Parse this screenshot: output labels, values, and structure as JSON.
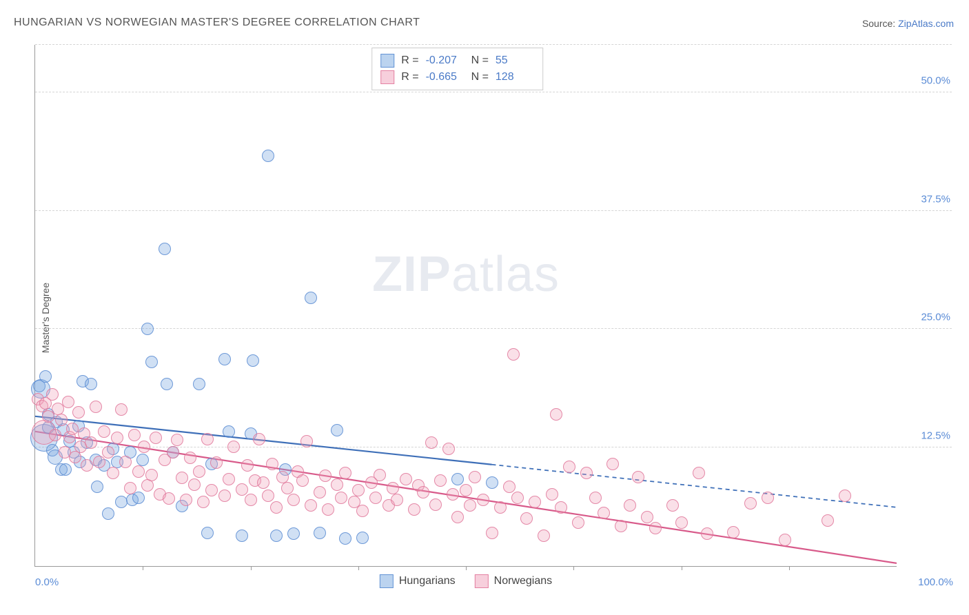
{
  "title": "HUNGARIAN VS NORWEGIAN MASTER'S DEGREE CORRELATION CHART",
  "source_label": "Source: ",
  "source_name": "ZipAtlas.com",
  "ylabel": "Master's Degree",
  "watermark_bold": "ZIP",
  "watermark_rest": "atlas",
  "chart": {
    "type": "scatter",
    "xlim": [
      0,
      100
    ],
    "ylim": [
      0,
      55
    ],
    "y_gridlines": [
      12.5,
      25.0,
      37.5,
      50.0
    ],
    "y_grid_top_extra": 55,
    "ytick_labels": [
      "12.5%",
      "25.0%",
      "37.5%",
      "50.0%"
    ],
    "xtick_positions": [
      12.5,
      25,
      37.5,
      50,
      62.5,
      75,
      87.5
    ],
    "xaxis_left_label": "0.0%",
    "xaxis_right_label": "100.0%",
    "background_color": "#ffffff",
    "grid_color": "#d5d5d5",
    "axis_color": "#999999",
    "point_radius": 9,
    "series": [
      {
        "name": "Hungarians",
        "fill": "rgba(120,167,224,0.35)",
        "stroke": "rgba(90,140,210,0.85)",
        "R": "-0.207",
        "N": "55",
        "trend": {
          "y_at_x0": 15.8,
          "y_at_x100": 6.2,
          "solid_until_x": 53,
          "color": "#3e6fb8",
          "width": 2.2
        },
        "points": [
          {
            "x": 0.5,
            "y": 19,
            "r": 9
          },
          {
            "x": 0.6,
            "y": 18.7,
            "r": 14
          },
          {
            "x": 1,
            "y": 13.5,
            "r": 20
          },
          {
            "x": 1.2,
            "y": 20,
            "r": 9
          },
          {
            "x": 1.5,
            "y": 16,
            "r": 9
          },
          {
            "x": 1.5,
            "y": 14.6,
            "r": 9
          },
          {
            "x": 2,
            "y": 12.2,
            "r": 9
          },
          {
            "x": 2.3,
            "y": 11.5,
            "r": 11
          },
          {
            "x": 2.5,
            "y": 15.2,
            "r": 9
          },
          {
            "x": 3,
            "y": 10.2,
            "r": 9
          },
          {
            "x": 3.3,
            "y": 14.4,
            "r": 9
          },
          {
            "x": 3.5,
            "y": 10.2,
            "r": 9
          },
          {
            "x": 4,
            "y": 13.2,
            "r": 9
          },
          {
            "x": 4.5,
            "y": 12,
            "r": 9
          },
          {
            "x": 5,
            "y": 14.8,
            "r": 9
          },
          {
            "x": 5.2,
            "y": 11,
            "r": 9
          },
          {
            "x": 5.5,
            "y": 19.5,
            "r": 9
          },
          {
            "x": 6,
            "y": 13,
            "r": 9
          },
          {
            "x": 6.5,
            "y": 19.2,
            "r": 9
          },
          {
            "x": 7,
            "y": 11.2,
            "r": 9
          },
          {
            "x": 7.2,
            "y": 8.4,
            "r": 9
          },
          {
            "x": 8,
            "y": 10.6,
            "r": 9
          },
          {
            "x": 8.5,
            "y": 5.5,
            "r": 9
          },
          {
            "x": 9,
            "y": 12.4,
            "r": 9
          },
          {
            "x": 9.5,
            "y": 11,
            "r": 9
          },
          {
            "x": 10,
            "y": 6.8,
            "r": 9
          },
          {
            "x": 11,
            "y": 12,
            "r": 9
          },
          {
            "x": 11.3,
            "y": 7,
            "r": 9
          },
          {
            "x": 12,
            "y": 7.2,
            "r": 9
          },
          {
            "x": 12.5,
            "y": 11.2,
            "r": 9
          },
          {
            "x": 13,
            "y": 25,
            "r": 9
          },
          {
            "x": 13.5,
            "y": 21.5,
            "r": 9
          },
          {
            "x": 15,
            "y": 33.5,
            "r": 9
          },
          {
            "x": 15.3,
            "y": 19.2,
            "r": 9
          },
          {
            "x": 16,
            "y": 12,
            "r": 9
          },
          {
            "x": 17,
            "y": 6.3,
            "r": 9
          },
          {
            "x": 19,
            "y": 19.2,
            "r": 9
          },
          {
            "x": 20,
            "y": 3.5,
            "r": 9
          },
          {
            "x": 20.5,
            "y": 10.8,
            "r": 9
          },
          {
            "x": 22,
            "y": 21.8,
            "r": 9
          },
          {
            "x": 22.5,
            "y": 14.2,
            "r": 9
          },
          {
            "x": 24,
            "y": 3.2,
            "r": 9
          },
          {
            "x": 25,
            "y": 14,
            "r": 9
          },
          {
            "x": 25.3,
            "y": 21.7,
            "r": 9
          },
          {
            "x": 27,
            "y": 43.3,
            "r": 9
          },
          {
            "x": 28,
            "y": 3.2,
            "r": 9
          },
          {
            "x": 29,
            "y": 10.2,
            "r": 9
          },
          {
            "x": 30,
            "y": 3.4,
            "r": 9
          },
          {
            "x": 32,
            "y": 28.3,
            "r": 9
          },
          {
            "x": 33,
            "y": 3.5,
            "r": 9
          },
          {
            "x": 35,
            "y": 14.3,
            "r": 9
          },
          {
            "x": 36,
            "y": 2.9,
            "r": 9
          },
          {
            "x": 38,
            "y": 3,
            "r": 9
          },
          {
            "x": 49,
            "y": 9.2,
            "r": 9
          },
          {
            "x": 53,
            "y": 8.8,
            "r": 9
          }
        ]
      },
      {
        "name": "Norwegians",
        "fill": "rgba(240,160,185,0.32)",
        "stroke": "rgba(225,120,155,0.85)",
        "R": "-0.665",
        "N": "128",
        "trend": {
          "y_at_x0": 14.2,
          "y_at_x100": 0.3,
          "solid_until_x": 100,
          "color": "#d85a8a",
          "width": 2.2
        },
        "points": [
          {
            "x": 0.3,
            "y": 17.6,
            "r": 9
          },
          {
            "x": 0.8,
            "y": 16.9,
            "r": 9
          },
          {
            "x": 1,
            "y": 14.1,
            "r": 18
          },
          {
            "x": 1.2,
            "y": 17.2,
            "r": 9
          },
          {
            "x": 1.5,
            "y": 15.8,
            "r": 9
          },
          {
            "x": 2,
            "y": 18.1,
            "r": 9
          },
          {
            "x": 2.3,
            "y": 13.8,
            "r": 9
          },
          {
            "x": 2.6,
            "y": 16.6,
            "r": 9
          },
          {
            "x": 3,
            "y": 15.4,
            "r": 9
          },
          {
            "x": 3.4,
            "y": 12,
            "r": 9
          },
          {
            "x": 3.8,
            "y": 17.3,
            "r": 9
          },
          {
            "x": 4,
            "y": 13.6,
            "r": 9
          },
          {
            "x": 4.3,
            "y": 14.5,
            "r": 9
          },
          {
            "x": 4.6,
            "y": 11.5,
            "r": 9
          },
          {
            "x": 5,
            "y": 16.2,
            "r": 9
          },
          {
            "x": 5.3,
            "y": 12.6,
            "r": 9
          },
          {
            "x": 5.7,
            "y": 14,
            "r": 9
          },
          {
            "x": 6,
            "y": 10.6,
            "r": 9
          },
          {
            "x": 6.5,
            "y": 13,
            "r": 9
          },
          {
            "x": 7,
            "y": 16.8,
            "r": 9
          },
          {
            "x": 7.4,
            "y": 11,
            "r": 9
          },
          {
            "x": 8,
            "y": 14.2,
            "r": 9
          },
          {
            "x": 8.5,
            "y": 12,
            "r": 9
          },
          {
            "x": 9,
            "y": 9.8,
            "r": 9
          },
          {
            "x": 9.5,
            "y": 13.5,
            "r": 9
          },
          {
            "x": 10,
            "y": 16.5,
            "r": 9
          },
          {
            "x": 10.5,
            "y": 11,
            "r": 9
          },
          {
            "x": 11,
            "y": 8.2,
            "r": 9
          },
          {
            "x": 11.5,
            "y": 13.8,
            "r": 9
          },
          {
            "x": 12,
            "y": 10,
            "r": 9
          },
          {
            "x": 12.6,
            "y": 12.6,
            "r": 9
          },
          {
            "x": 13,
            "y": 8.5,
            "r": 9
          },
          {
            "x": 13.5,
            "y": 9.6,
            "r": 9
          },
          {
            "x": 14,
            "y": 13.5,
            "r": 9
          },
          {
            "x": 14.5,
            "y": 7.6,
            "r": 9
          },
          {
            "x": 15,
            "y": 11.2,
            "r": 9
          },
          {
            "x": 15.5,
            "y": 7.1,
            "r": 9
          },
          {
            "x": 16,
            "y": 12,
            "r": 9
          },
          {
            "x": 16.5,
            "y": 13.3,
            "r": 9
          },
          {
            "x": 17,
            "y": 9.3,
            "r": 9
          },
          {
            "x": 17.5,
            "y": 7,
            "r": 9
          },
          {
            "x": 18,
            "y": 11.4,
            "r": 9
          },
          {
            "x": 18.5,
            "y": 8.6,
            "r": 9
          },
          {
            "x": 19,
            "y": 10,
            "r": 9
          },
          {
            "x": 19.5,
            "y": 6.8,
            "r": 9
          },
          {
            "x": 20,
            "y": 13.4,
            "r": 9
          },
          {
            "x": 20.5,
            "y": 8,
            "r": 9
          },
          {
            "x": 21,
            "y": 10.9,
            "r": 9
          },
          {
            "x": 22,
            "y": 7.4,
            "r": 9
          },
          {
            "x": 22.5,
            "y": 9.2,
            "r": 9
          },
          {
            "x": 23,
            "y": 12.6,
            "r": 9
          },
          {
            "x": 24,
            "y": 8.1,
            "r": 9
          },
          {
            "x": 24.6,
            "y": 10.6,
            "r": 9
          },
          {
            "x": 25,
            "y": 7,
            "r": 9
          },
          {
            "x": 25.5,
            "y": 9,
            "r": 9
          },
          {
            "x": 26,
            "y": 13.4,
            "r": 9
          },
          {
            "x": 26.5,
            "y": 8.8,
            "r": 9
          },
          {
            "x": 27,
            "y": 7.4,
            "r": 9
          },
          {
            "x": 27.5,
            "y": 10.8,
            "r": 9
          },
          {
            "x": 28,
            "y": 6.2,
            "r": 9
          },
          {
            "x": 28.7,
            "y": 9.4,
            "r": 9
          },
          {
            "x": 29.3,
            "y": 8.2,
            "r": 9
          },
          {
            "x": 30,
            "y": 7,
            "r": 9
          },
          {
            "x": 30.5,
            "y": 10,
            "r": 9
          },
          {
            "x": 31,
            "y": 9,
            "r": 9
          },
          {
            "x": 31.5,
            "y": 13.2,
            "r": 9
          },
          {
            "x": 32,
            "y": 6.4,
            "r": 9
          },
          {
            "x": 33,
            "y": 7.8,
            "r": 9
          },
          {
            "x": 33.7,
            "y": 9.5,
            "r": 9
          },
          {
            "x": 34,
            "y": 6,
            "r": 9
          },
          {
            "x": 35,
            "y": 8.6,
            "r": 9
          },
          {
            "x": 35.5,
            "y": 7.2,
            "r": 9
          },
          {
            "x": 36,
            "y": 9.8,
            "r": 9
          },
          {
            "x": 37,
            "y": 6.8,
            "r": 9
          },
          {
            "x": 37.5,
            "y": 8,
            "r": 9
          },
          {
            "x": 38,
            "y": 5.8,
            "r": 9
          },
          {
            "x": 39,
            "y": 8.8,
            "r": 9
          },
          {
            "x": 39.5,
            "y": 7.2,
            "r": 9
          },
          {
            "x": 40,
            "y": 9.6,
            "r": 9
          },
          {
            "x": 41,
            "y": 6.4,
            "r": 9
          },
          {
            "x": 41.5,
            "y": 8.2,
            "r": 9
          },
          {
            "x": 42,
            "y": 7,
            "r": 9
          },
          {
            "x": 43,
            "y": 9.2,
            "r": 9
          },
          {
            "x": 44,
            "y": 6,
            "r": 9
          },
          {
            "x": 44.5,
            "y": 8.5,
            "r": 9
          },
          {
            "x": 45,
            "y": 7.8,
            "r": 9
          },
          {
            "x": 46,
            "y": 13,
            "r": 9
          },
          {
            "x": 46.5,
            "y": 6.5,
            "r": 9
          },
          {
            "x": 47,
            "y": 9,
            "r": 9
          },
          {
            "x": 48,
            "y": 12.4,
            "r": 9
          },
          {
            "x": 48.5,
            "y": 7.6,
            "r": 9
          },
          {
            "x": 49,
            "y": 5.2,
            "r": 9
          },
          {
            "x": 50,
            "y": 8,
            "r": 9
          },
          {
            "x": 50.5,
            "y": 6.4,
            "r": 9
          },
          {
            "x": 51,
            "y": 9.4,
            "r": 9
          },
          {
            "x": 52,
            "y": 7,
            "r": 9
          },
          {
            "x": 53,
            "y": 3.5,
            "r": 9
          },
          {
            "x": 54,
            "y": 6.2,
            "r": 9
          },
          {
            "x": 55,
            "y": 8.4,
            "r": 9
          },
          {
            "x": 55.5,
            "y": 22.3,
            "r": 9
          },
          {
            "x": 56,
            "y": 7.2,
            "r": 9
          },
          {
            "x": 57,
            "y": 5,
            "r": 9
          },
          {
            "x": 58,
            "y": 6.8,
            "r": 9
          },
          {
            "x": 59,
            "y": 3.2,
            "r": 9
          },
          {
            "x": 60,
            "y": 7.6,
            "r": 9
          },
          {
            "x": 60.5,
            "y": 16,
            "r": 9
          },
          {
            "x": 61,
            "y": 6.2,
            "r": 9
          },
          {
            "x": 62,
            "y": 10.5,
            "r": 9
          },
          {
            "x": 63,
            "y": 4.6,
            "r": 9
          },
          {
            "x": 64,
            "y": 9.8,
            "r": 9
          },
          {
            "x": 65,
            "y": 7.2,
            "r": 9
          },
          {
            "x": 66,
            "y": 5.6,
            "r": 9
          },
          {
            "x": 67,
            "y": 10.8,
            "r": 9
          },
          {
            "x": 68,
            "y": 4.2,
            "r": 9
          },
          {
            "x": 69,
            "y": 6.4,
            "r": 9
          },
          {
            "x": 70,
            "y": 9.4,
            "r": 9
          },
          {
            "x": 71,
            "y": 5.2,
            "r": 9
          },
          {
            "x": 72,
            "y": 4,
            "r": 9
          },
          {
            "x": 74,
            "y": 6.4,
            "r": 9
          },
          {
            "x": 75,
            "y": 4.6,
            "r": 9
          },
          {
            "x": 77,
            "y": 9.8,
            "r": 9
          },
          {
            "x": 78,
            "y": 3.4,
            "r": 9
          },
          {
            "x": 81,
            "y": 3.6,
            "r": 9
          },
          {
            "x": 83,
            "y": 6.6,
            "r": 9
          },
          {
            "x": 85,
            "y": 7.2,
            "r": 9
          },
          {
            "x": 87,
            "y": 2.8,
            "r": 9
          },
          {
            "x": 92,
            "y": 4.8,
            "r": 9
          },
          {
            "x": 94,
            "y": 7.4,
            "r": 9
          }
        ]
      }
    ]
  },
  "stats_labels": {
    "R": "R =",
    "N": "N ="
  },
  "legend": {
    "items": [
      {
        "label": "Hungarians",
        "class": "sw-blue"
      },
      {
        "label": "Norwegians",
        "class": "sw-pink"
      }
    ]
  }
}
